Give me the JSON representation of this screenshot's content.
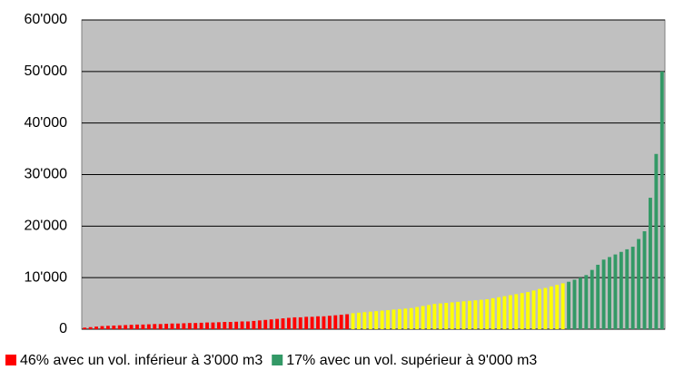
{
  "chart_data": {
    "type": "bar",
    "ylim": [
      0,
      60000
    ],
    "yticks": [
      0,
      {
        "value": 10000,
        "label": "10'000"
      },
      {
        "value": 20000,
        "label": "20'000"
      },
      {
        "value": 30000,
        "label": "30'000"
      },
      {
        "value": 40000,
        "label": "40'000"
      },
      {
        "value": 50000,
        "label": "50'000"
      },
      {
        "value": 60000,
        "label": "60'000"
      }
    ],
    "grid": true,
    "legend": "bottom",
    "series": [
      {
        "name": "46% avec un vol. inférieur à 3'000 m3",
        "color": "#ff0000",
        "values": [
          300,
          400,
          500,
          600,
          650,
          700,
          750,
          800,
          850,
          900,
          900,
          950,
          1000,
          1000,
          1050,
          1100,
          1100,
          1150,
          1200,
          1200,
          1250,
          1300,
          1300,
          1350,
          1400,
          1400,
          1450,
          1500,
          1500,
          1600,
          1700,
          1800,
          1900,
          2000,
          2100,
          2200,
          2300,
          2300,
          2400,
          2400,
          2500,
          2500,
          2600,
          2700,
          2800,
          2900
        ]
      },
      {
        "color": "#ffff00",
        "values": [
          3100,
          3200,
          3300,
          3400,
          3500,
          3600,
          3700,
          3800,
          3900,
          4000,
          4100,
          4300,
          4500,
          4700,
          4900,
          5000,
          5100,
          5200,
          5300,
          5400,
          5500,
          5600,
          5700,
          5800,
          6000,
          6200,
          6400,
          6600,
          6800,
          7000,
          7200,
          7500,
          7800,
          8000,
          8300,
          8600,
          8900
        ]
      },
      {
        "name": "17% avec un vol. supérieur à 9'000 m3",
        "color": "#339966",
        "values": [
          9200,
          9600,
          10000,
          10500,
          11500,
          12500,
          13500,
          14000,
          14500,
          15000,
          15500,
          16000,
          17500,
          19000,
          25500,
          34000,
          50000
        ]
      }
    ]
  }
}
